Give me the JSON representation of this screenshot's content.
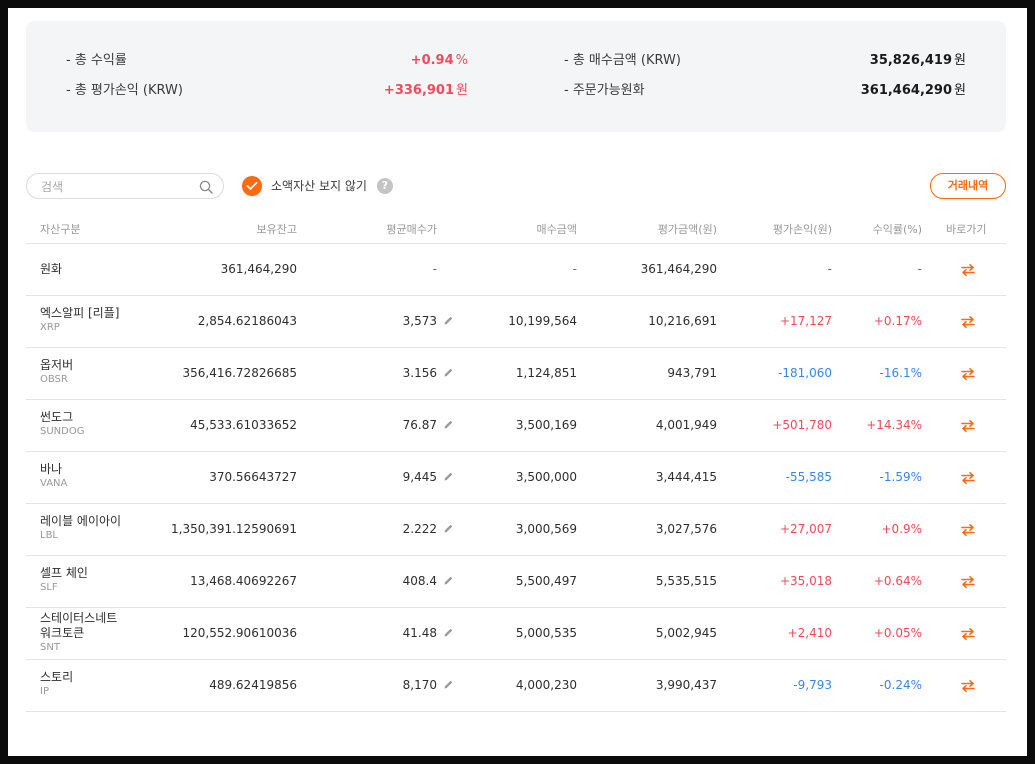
{
  "summary": {
    "total_return_label": "- 총 수익률",
    "total_return_value": "+0.94",
    "total_return_unit": "%",
    "total_pl_label": "- 총 평가손익 (KRW)",
    "total_pl_value": "+336,901",
    "total_pl_unit": "원",
    "total_buy_label": "- 총 매수금액 (KRW)",
    "total_buy_value": "35,826,419",
    "total_buy_unit": "원",
    "orderable_label": "- 주문가능원화",
    "orderable_value": "361,464,290",
    "orderable_unit": "원"
  },
  "toolbar": {
    "search_placeholder": "검색",
    "hide_small_label": "소액자산 보지 않기",
    "help_symbol": "?",
    "history_button": "거래내역"
  },
  "table": {
    "headers": {
      "asset": "자산구분",
      "balance": "보유잔고",
      "avg_price": "평균매수가",
      "buy_amount": "매수금액",
      "eval_amount": "평가금액(원)",
      "eval_pl": "평가손익(원)",
      "return_pct": "수익률(%)",
      "goto": "바로가기"
    },
    "rows": [
      {
        "name": "원화",
        "symbol": "",
        "balance": "361,464,290",
        "avg": "-",
        "buy": "-",
        "eval": "361,464,290",
        "pl": "-",
        "pct": "-",
        "sign": "none"
      },
      {
        "name": "엑스알피 [리플]",
        "symbol": "XRP",
        "balance": "2,854.62186043",
        "avg": "3,573",
        "buy": "10,199,564",
        "eval": "10,216,691",
        "pl": "+17,127",
        "pct": "+0.17%",
        "sign": "pos"
      },
      {
        "name": "옵저버",
        "symbol": "OBSR",
        "balance": "356,416.72826685",
        "avg": "3.156",
        "buy": "1,124,851",
        "eval": "943,791",
        "pl": "-181,060",
        "pct": "-16.1%",
        "sign": "neg"
      },
      {
        "name": "썬도그",
        "symbol": "SUNDOG",
        "balance": "45,533.61033652",
        "avg": "76.87",
        "buy": "3,500,169",
        "eval": "4,001,949",
        "pl": "+501,780",
        "pct": "+14.34%",
        "sign": "pos"
      },
      {
        "name": "바나",
        "symbol": "VANA",
        "balance": "370.56643727",
        "avg": "9,445",
        "buy": "3,500,000",
        "eval": "3,444,415",
        "pl": "-55,585",
        "pct": "-1.59%",
        "sign": "neg"
      },
      {
        "name": "레이블 에이아이",
        "symbol": "LBL",
        "balance": "1,350,391.12590691",
        "avg": "2.222",
        "buy": "3,000,569",
        "eval": "3,027,576",
        "pl": "+27,007",
        "pct": "+0.9%",
        "sign": "pos"
      },
      {
        "name": "셀프 체인",
        "symbol": "SLF",
        "balance": "13,468.40692267",
        "avg": "408.4",
        "buy": "5,500,497",
        "eval": "5,535,515",
        "pl": "+35,018",
        "pct": "+0.64%",
        "sign": "pos"
      },
      {
        "name": "스테이터스네트\n워크토큰",
        "symbol": "SNT",
        "balance": "120,552.90610036",
        "avg": "41.48",
        "buy": "5,000,535",
        "eval": "5,002,945",
        "pl": "+2,410",
        "pct": "+0.05%",
        "sign": "pos"
      },
      {
        "name": "스토리",
        "symbol": "IP",
        "balance": "489.62419856",
        "avg": "8,170",
        "buy": "4,000,230",
        "eval": "3,990,437",
        "pl": "-9,793",
        "pct": "-0.24%",
        "sign": "neg"
      }
    ]
  },
  "colors": {
    "positive": "#f04b5b",
    "negative": "#3a86e6",
    "accent": "#ff6a13"
  },
  "icons": {
    "search": "search-icon",
    "check": "check-icon",
    "edit": "pencil-icon",
    "goto": "swap-arrows-icon"
  }
}
